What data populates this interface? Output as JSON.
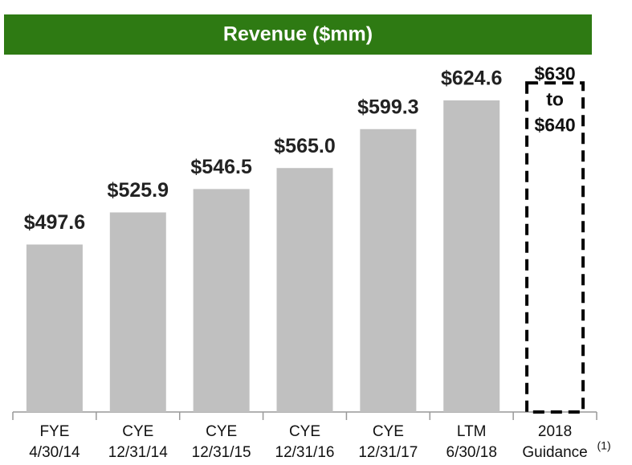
{
  "chart_data": {
    "type": "bar",
    "title": "Revenue ($mm)",
    "categories": [
      [
        "FYE",
        "4/30/14"
      ],
      [
        "CYE",
        "12/31/14"
      ],
      [
        "CYE",
        "12/31/15"
      ],
      [
        "CYE",
        "12/31/16"
      ],
      [
        "CYE",
        "12/31/17"
      ],
      [
        "LTM",
        "6/30/18"
      ],
      [
        "2018",
        "Guidance"
      ]
    ],
    "values": [
      497.6,
      525.9,
      546.5,
      565.0,
      599.3,
      624.6,
      null
    ],
    "value_labels": [
      "$497.6",
      "$525.9",
      "$546.5",
      "$565.0",
      "$599.3",
      "$624.6",
      null
    ],
    "guidance": {
      "low": 630,
      "high": 640,
      "labels": [
        "$630",
        "to",
        "$640"
      ]
    },
    "footnote": "(1)",
    "color": "#c0c0c0",
    "title_color": "#2e7a13",
    "ylim": [
      350,
      660
    ]
  }
}
